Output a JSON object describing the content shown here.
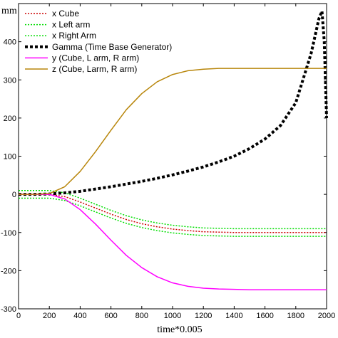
{
  "chart_data": {
    "type": "line",
    "xlabel": "time*0.005",
    "ylabel": "mm",
    "xlim": [
      0,
      2000
    ],
    "ylim": [
      -300,
      500
    ],
    "x_ticks": [
      "0",
      "200",
      "400",
      "600",
      "800",
      "1000",
      "1200",
      "1400",
      "1600",
      "1800",
      "2000"
    ],
    "y_ticks": [
      "-300",
      "-200",
      "-100",
      "0",
      "100",
      "200",
      "300",
      "400"
    ],
    "legend_position": "top-left",
    "x": [
      0,
      100,
      200,
      300,
      400,
      500,
      600,
      700,
      800,
      900,
      1000,
      1100,
      1200,
      1300,
      1400,
      1500,
      1600,
      1700,
      1800,
      1900,
      1950,
      1970,
      1985,
      2000
    ],
    "series": [
      {
        "name": "x Cube",
        "color": "#cc0000",
        "dash": "dotted",
        "values": [
          0,
          0,
          0,
          -6,
          -20,
          -36,
          -52,
          -66,
          -77,
          -85,
          -91,
          -95,
          -98,
          -99,
          -100,
          -100,
          -100,
          -100,
          -100,
          -100,
          -100,
          -100,
          -100,
          -100
        ]
      },
      {
        "name": "x Left arm",
        "color": "#00dd00",
        "dash": "dotted",
        "values": [
          10,
          10,
          10,
          4,
          -10,
          -26,
          -42,
          -56,
          -67,
          -75,
          -81,
          -85,
          -88,
          -89,
          -90,
          -90,
          -90,
          -90,
          -90,
          -90,
          -90,
          -90,
          -90,
          -90
        ]
      },
      {
        "name": "x Right Arm",
        "color": "#00dd00",
        "dash": "dotted",
        "values": [
          -10,
          -10,
          -10,
          -16,
          -30,
          -46,
          -62,
          -76,
          -87,
          -95,
          -101,
          -105,
          -108,
          -109,
          -110,
          -110,
          -110,
          -110,
          -110,
          -110,
          -110,
          -110,
          -110,
          -110
        ]
      },
      {
        "name": "Gamma (Time Base Generator)",
        "color": "#000000",
        "dash": "bold-dotted",
        "values": [
          0,
          0,
          1,
          4,
          8,
          14,
          20,
          27,
          34,
          42,
          51,
          61,
          72,
          85,
          100,
          120,
          145,
          180,
          240,
          370,
          460,
          480,
          400,
          200
        ]
      },
      {
        "name": "y (Cube, L arm, R arm)",
        "color": "#ff00ff",
        "dash": "solid",
        "values": [
          0,
          0,
          0,
          -12,
          -40,
          -78,
          -120,
          -160,
          -192,
          -216,
          -232,
          -241,
          -246,
          -248,
          -249,
          -250,
          -250,
          -250,
          -250,
          -250,
          -250,
          -250,
          -250,
          -250
        ]
      },
      {
        "name": "z (Cube, Larm, R arm)",
        "color": "#b8860b",
        "dash": "solid",
        "values": [
          0,
          0,
          2,
          20,
          60,
          112,
          168,
          222,
          264,
          295,
          314,
          324,
          328,
          330,
          330,
          330,
          330,
          330,
          330,
          330,
          330,
          330,
          330,
          330
        ]
      }
    ]
  }
}
